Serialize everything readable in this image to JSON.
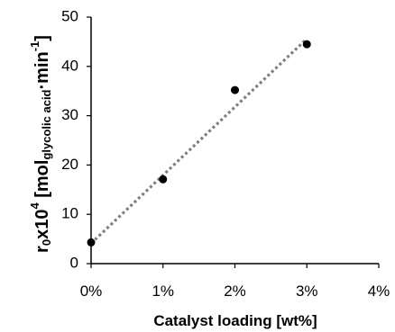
{
  "chart_data": {
    "type": "scatter",
    "xlabel": "Catalyst loading [wt%]",
    "ylabel": {
      "prefix": "r",
      "sub1": "0",
      "mid": "x10",
      "sup1": "4",
      "bracket_open": " [mol",
      "sub2": "glycolic acid",
      "dot": "·min",
      "sup2": "-1",
      "bracket_close": "]"
    },
    "xlim": [
      0,
      4
    ],
    "ylim": [
      0,
      50
    ],
    "x_ticks": [
      {
        "value": 0,
        "label": "0%"
      },
      {
        "value": 1,
        "label": "1%"
      },
      {
        "value": 2,
        "label": "2%"
      },
      {
        "value": 3,
        "label": "3%"
      },
      {
        "value": 4,
        "label": "4%"
      }
    ],
    "y_ticks": [
      {
        "value": 0,
        "label": "0"
      },
      {
        "value": 10,
        "label": "10"
      },
      {
        "value": 20,
        "label": "20"
      },
      {
        "value": 30,
        "label": "30"
      },
      {
        "value": 40,
        "label": "40"
      },
      {
        "value": 50,
        "label": "50"
      }
    ],
    "points": [
      {
        "x": 0,
        "y": 4.3
      },
      {
        "x": 1,
        "y": 17.1
      },
      {
        "x": 2,
        "y": 35.2
      },
      {
        "x": 3,
        "y": 44.5
      }
    ],
    "trendline": {
      "style": "dotted",
      "color": "#7f7f7f",
      "x": [
        0,
        3
      ],
      "y": [
        4.1,
        45.6
      ]
    },
    "marker_color": "#000000",
    "grid": false,
    "legend": "none"
  }
}
